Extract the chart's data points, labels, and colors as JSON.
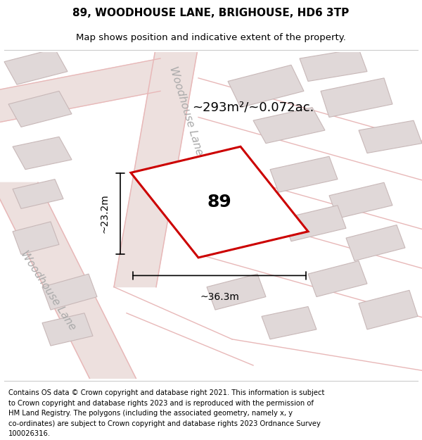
{
  "title": "89, WOODHOUSE LANE, BRIGHOUSE, HD6 3TP",
  "subtitle": "Map shows position and indicative extent of the property.",
  "footer_lines": [
    "Contains OS data © Crown copyright and database right 2021. This information is subject",
    "to Crown copyright and database rights 2023 and is reproduced with the permission of",
    "HM Land Registry. The polygons (including the associated geometry, namely x, y",
    "co-ordinates) are subject to Crown copyright and database rights 2023 Ordnance Survey",
    "100026316."
  ],
  "area_label": "~293m²/~0.072ac.",
  "width_label": "~36.3m",
  "height_label": "~23.2m",
  "property_number": "89",
  "map_bg": "#f5f0f0",
  "road_color": "#e8b8b8",
  "building_fill": "#e0d8d8",
  "building_edge": "#c8b8b8",
  "red_outline": "#cc0000",
  "title_fontsize": 11,
  "subtitle_fontsize": 9.5,
  "footer_fontsize": 7.2,
  "area_fontsize": 13,
  "road_label_fontsize": 11,
  "dim_fontsize": 10,
  "property_label_fontsize": 18
}
